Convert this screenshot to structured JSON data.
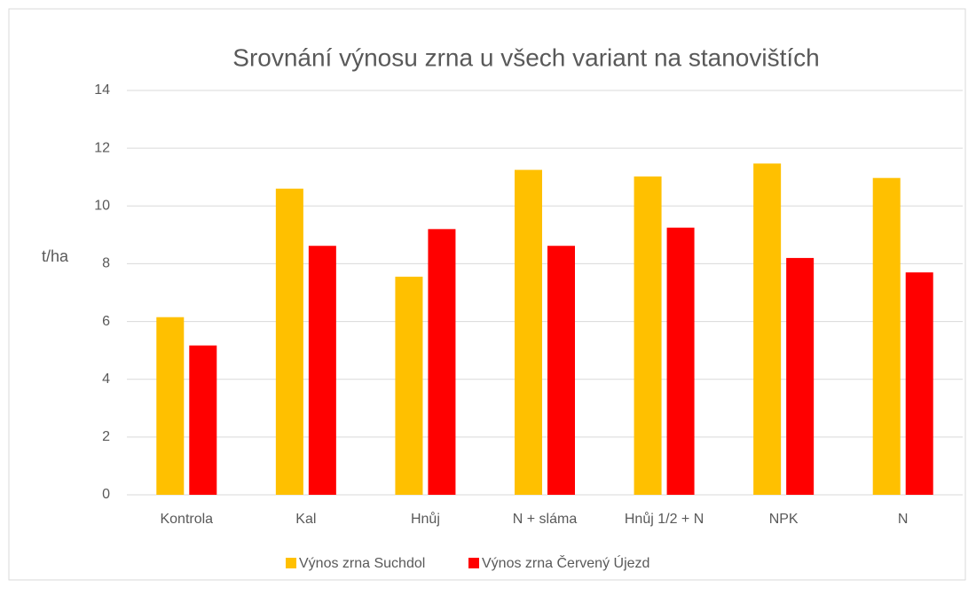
{
  "chart_data": {
    "type": "bar",
    "title": "Srovnání výnosu zrna u všech variant na stanovištích",
    "y_label": "t/ha",
    "categories": [
      "Kontrola",
      "Kal",
      "Hnůj",
      "N + sláma",
      "Hnůj 1/2 + N",
      "NPK",
      "N"
    ],
    "series": [
      {
        "name": "Výnos zrna Suchdol",
        "color": "#ffc000",
        "values": [
          6.15,
          10.6,
          7.55,
          11.25,
          11.02,
          11.47,
          10.97
        ]
      },
      {
        "name": "Výnos zrna Červený Újezd",
        "color": "#ff0000",
        "values": [
          5.17,
          8.62,
          9.2,
          8.62,
          9.25,
          8.2,
          7.7
        ]
      }
    ],
    "ylim": [
      0,
      14
    ],
    "yticks": [
      0,
      2,
      4,
      6,
      8,
      10,
      12,
      14
    ],
    "grid": true,
    "legend": "bottom"
  }
}
